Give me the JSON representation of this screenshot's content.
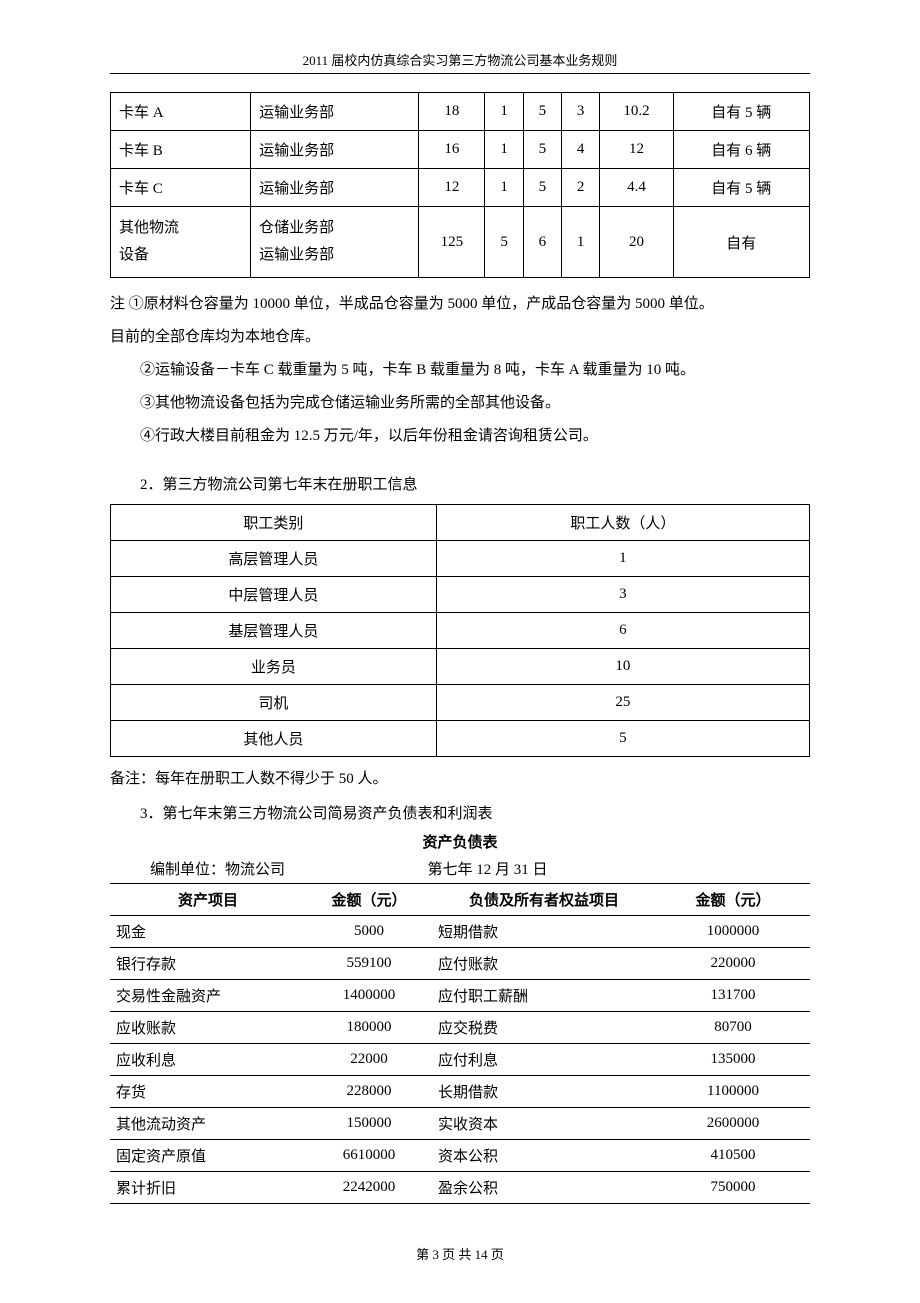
{
  "header": "2011 届校内仿真综合实习第三方物流公司基本业务规则",
  "table1": {
    "rows": [
      [
        "卡车 A",
        "运输业务部",
        "18",
        "1",
        "5",
        "3",
        "10.2",
        "自有 5 辆"
      ],
      [
        "卡车 B",
        "运输业务部",
        "16",
        "1",
        "5",
        "4",
        "12",
        "自有 6 辆"
      ],
      [
        "卡车 C",
        "运输业务部",
        "12",
        "1",
        "5",
        "2",
        "4.4",
        "自有 5 辆"
      ]
    ],
    "merged": {
      "c0a": "其他物流",
      "c0b": "设备",
      "c1a": "仓储业务部",
      "c1b": "运输业务部",
      "c2": "125",
      "c3": "5",
      "c4": "6",
      "c5": "1",
      "c6": "20",
      "c7": "自有"
    }
  },
  "notes": {
    "n1": "注 ①原材料仓容量为 10000 单位，半成品仓容量为 5000 单位，产成品仓容量为 5000 单位。",
    "n1b": "目前的全部仓库均为本地仓库。",
    "n2": "②运输设备－卡车 C 载重量为 5 吨，卡车 B 载重量为 8 吨，卡车 A 载重量为 10 吨。",
    "n3": "③其他物流设备包括为完成仓储运输业务所需的全部其他设备。",
    "n4": "④行政大楼目前租金为 12.5 万元/年，以后年份租金请咨询租赁公司。"
  },
  "section2_title": "2．第三方物流公司第七年末在册职工信息",
  "table2": {
    "header": [
      "职工类别",
      "职工人数（人）"
    ],
    "rows": [
      [
        "高层管理人员",
        "1"
      ],
      [
        "中层管理人员",
        "3"
      ],
      [
        "基层管理人员",
        "6"
      ],
      [
        "业务员",
        "10"
      ],
      [
        "司机",
        "25"
      ],
      [
        "其他人员",
        "5"
      ]
    ]
  },
  "remark2": "备注：每年在册职工人数不得少于 50 人。",
  "section3_title": "3．第七年末第三方物流公司简易资产负债表和利润表",
  "balance_title": "资产负债表",
  "balance_sub_left": "编制单位：物流公司",
  "balance_sub_mid": "第七年 12 月 31 日",
  "table3": {
    "header": [
      "资产项目",
      "金额（元）",
      "负债及所有者权益项目",
      "金额（元）"
    ],
    "rows": [
      [
        "现金",
        "5000",
        "短期借款",
        "1000000"
      ],
      [
        "银行存款",
        "559100",
        "应付账款",
        "220000"
      ],
      [
        "交易性金融资产",
        "1400000",
        "应付职工薪酬",
        "131700"
      ],
      [
        "应收账款",
        "180000",
        "应交税费",
        "80700"
      ],
      [
        "应收利息",
        "22000",
        "应付利息",
        "135000"
      ],
      [
        "存货",
        "228000",
        "长期借款",
        "1100000"
      ],
      [
        "其他流动资产",
        "150000",
        "实收资本",
        "2600000"
      ],
      [
        "固定资产原值",
        "6610000",
        "资本公积",
        "410500"
      ],
      [
        "累计折旧",
        "2242000",
        "盈余公积",
        "750000"
      ]
    ]
  },
  "footer": "第 3 页 共 14 页"
}
